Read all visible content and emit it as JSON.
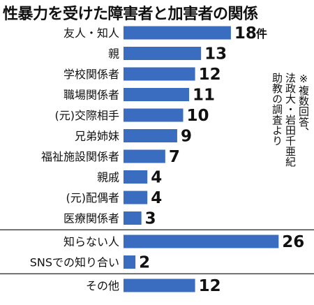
{
  "title": "性暴力を受けた障害者と加害者の関係",
  "note": "※複数回答、\n法政大・岩田千亜紀\n助教の調査より",
  "colors": {
    "bar": "#3a6dbf",
    "text": "#111111",
    "rule": "#222222"
  },
  "chart_data": {
    "type": "bar",
    "orientation": "horizontal",
    "unit": "件",
    "categories": [
      "友人・知人",
      "親",
      "学校関係者",
      "職場関係者",
      "(元)交際相手",
      "兄弟姉妹",
      "福祉施設関係者",
      "親戚",
      "(元)配偶者",
      "医療関係者",
      "知らない人",
      "SNSでの知り合い",
      "その他"
    ],
    "values": [
      18,
      13,
      12,
      11,
      10,
      9,
      7,
      4,
      4,
      3,
      26,
      2,
      12
    ],
    "separators_after": [
      9,
      11
    ]
  }
}
